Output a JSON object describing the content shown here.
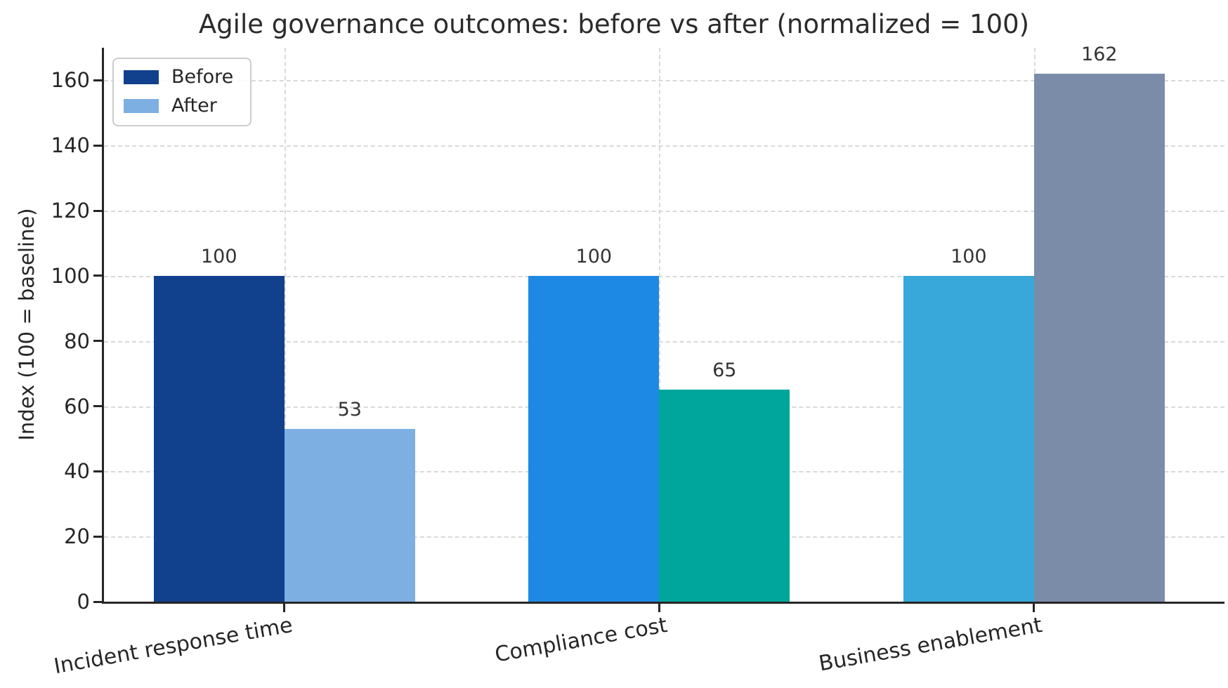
{
  "chart_data": {
    "type": "bar",
    "title": "Agile governance outcomes: before vs after (normalized = 100)",
    "xlabel": "",
    "ylabel": "Index (100 = baseline)",
    "categories": [
      "Incident response time",
      "Compliance cost",
      "Business enablement"
    ],
    "series": [
      {
        "name": "Before",
        "values": [
          100,
          100,
          100
        ],
        "colors": [
          "#11408d",
          "#1e88e5",
          "#38a7d9"
        ]
      },
      {
        "name": "After",
        "values": [
          53,
          65,
          162
        ],
        "colors": [
          "#7dafe2",
          "#00a69c",
          "#7a8ca8"
        ]
      }
    ],
    "bar_value_labels": [
      [
        "100",
        "100",
        "100"
      ],
      [
        "53",
        "65",
        "162"
      ]
    ],
    "yticks": [
      0,
      20,
      40,
      60,
      80,
      100,
      120,
      140,
      160
    ],
    "ylim": [
      0,
      170
    ],
    "grid": true,
    "grid_style": "dashed",
    "grid_color": "#d9d9d9",
    "legend_position": "upper-left",
    "legend": {
      "items": [
        {
          "label": "Before",
          "color": "#11408d"
        },
        {
          "label": "After",
          "color": "#7dafe2"
        }
      ]
    },
    "spine_color": "#262626",
    "text_color": "#262626",
    "background_color": "#ffffff"
  }
}
